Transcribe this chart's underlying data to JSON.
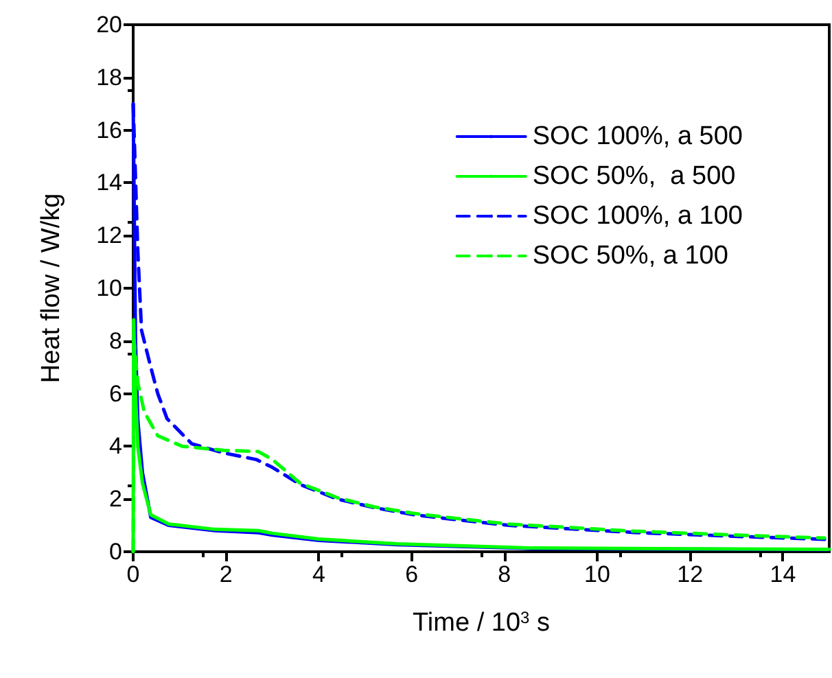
{
  "chart_data": {
    "type": "line",
    "xlabel": "Time / 10$^{3}$ s",
    "ylabel": "Heat flow / W/kg",
    "xlim": [
      0,
      15
    ],
    "xticks": [
      0,
      2,
      4,
      6,
      8,
      10,
      12,
      14
    ],
    "ylim": [
      0,
      20
    ],
    "yticks": [
      0,
      2,
      4,
      6,
      8,
      10,
      12,
      14,
      16,
      18,
      20
    ],
    "grid": false,
    "legend": "top right",
    "marker": "none",
    "series": [
      {
        "name": "SOC 100%, a 500",
        "color": "#0000ff",
        "line_style": "solid",
        "x": [
          0,
          0.05,
          0.1,
          0.2,
          0.38,
          0.77,
          1.76,
          2.7,
          3.0,
          4.0,
          5.7,
          8.6,
          12,
          15
        ],
        "values": [
          17,
          8,
          5,
          3,
          1.3,
          1.0,
          0.8,
          0.72,
          0.63,
          0.43,
          0.27,
          0.12,
          0.1,
          0.08
        ]
      },
      {
        "name": "SOC 50%,  a 500",
        "color": "#00ff00",
        "line_style": "solid",
        "x": [
          0,
          0.01,
          0.05,
          0.1,
          0.2,
          0.38,
          0.77,
          1.76,
          2.7,
          3.0,
          4.0,
          5.7,
          8.6,
          12,
          15
        ],
        "values": [
          0,
          8.8,
          6,
          4,
          2.6,
          1.4,
          1.05,
          0.85,
          0.8,
          0.7,
          0.48,
          0.3,
          0.14,
          0.11,
          0.09
        ]
      },
      {
        "name": "SOC 100%, a 100",
        "color": "#0000ff",
        "line_style": "dashed",
        "x": [
          0,
          0.1,
          0.18,
          0.38,
          0.53,
          0.73,
          1.26,
          1.95,
          2.65,
          3.0,
          3.6,
          4.4,
          5.2,
          6.06,
          7.05,
          8.1,
          10.8,
          13.2,
          14.9
        ],
        "values": [
          17,
          11.4,
          8.4,
          7.0,
          6.0,
          5.05,
          4.1,
          3.75,
          3.5,
          3.2,
          2.55,
          2.0,
          1.67,
          1.4,
          1.2,
          1.0,
          0.73,
          0.57,
          0.47
        ]
      },
      {
        "name": "SOC 50%, a 100",
        "color": "#00ff00",
        "line_style": "dashed",
        "x": [
          0,
          0.02,
          0.1,
          0.24,
          0.53,
          1.06,
          1.95,
          2.7,
          3.0,
          3.6,
          4.4,
          5.2,
          6.06,
          7.05,
          8.1,
          10.8,
          13.2,
          14.9
        ],
        "values": [
          0,
          8.0,
          6.4,
          5.3,
          4.4,
          4.0,
          3.85,
          3.8,
          3.5,
          2.6,
          2.05,
          1.7,
          1.45,
          1.25,
          1.05,
          0.78,
          0.62,
          0.52
        ]
      }
    ]
  }
}
